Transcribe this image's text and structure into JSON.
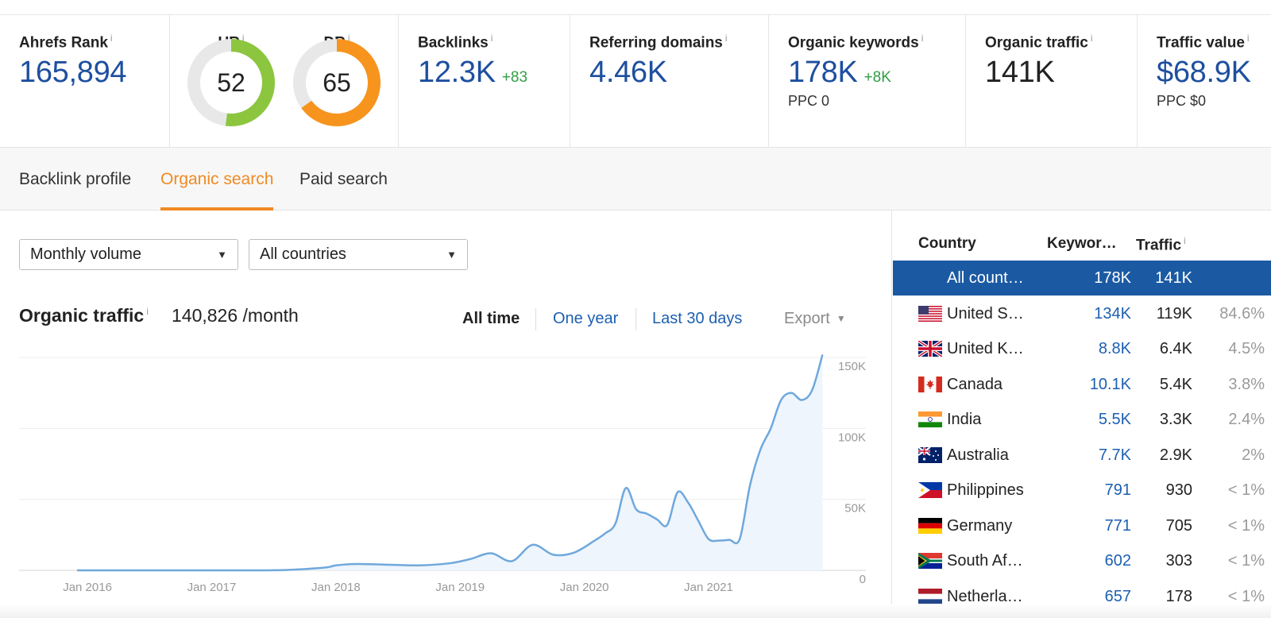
{
  "metrics": {
    "ahrefs_rank": {
      "label": "Ahrefs Rank",
      "value": "165,894"
    },
    "ur": {
      "label": "UR",
      "value": "52",
      "level": 52,
      "color": "#8cc63f"
    },
    "dr": {
      "label": "DR",
      "value": "65",
      "level": 65,
      "color": "#f7941d"
    },
    "backlinks": {
      "label": "Backlinks",
      "value": "12.3K",
      "delta": "+83"
    },
    "referring_domains": {
      "label": "Referring domains",
      "value": "4.46K"
    },
    "organic_keywords": {
      "label": "Organic keywords",
      "value": "178K",
      "delta": "+8K",
      "sub": "PPC 0"
    },
    "organic_traffic": {
      "label": "Organic traffic",
      "value": "141K"
    },
    "traffic_value": {
      "label": "Traffic value",
      "value": "$68.9K",
      "sub": "PPC $0"
    },
    "info_glyph": "i"
  },
  "tabs": [
    {
      "label": "Backlink profile",
      "active": false
    },
    {
      "label": "Organic search",
      "active": true
    },
    {
      "label": "Paid search",
      "active": false
    }
  ],
  "filters": {
    "volume": "Monthly volume",
    "countries": "All countries"
  },
  "traffic": {
    "title": "Organic traffic",
    "value": "140,826 /month",
    "ranges": {
      "all": "All time",
      "year": "One year",
      "days": "Last 30 days"
    },
    "export": "Export"
  },
  "chart_data": {
    "type": "area",
    "x_ticks": [
      "Jan 2016",
      "Jan 2017",
      "Jan 2018",
      "Jan 2019",
      "Jan 2020",
      "Jan 2021"
    ],
    "y_ticks": [
      "150K",
      "100K",
      "50K",
      "0"
    ],
    "ylim": [
      0,
      150000
    ],
    "grid": true,
    "color": "#6fa8dc",
    "fill": "#eef5fd",
    "series": [
      {
        "x": [
          "2015-12",
          "2016-06",
          "2017-01",
          "2017-06",
          "2017-09",
          "2017-12",
          "2018-01",
          "2018-03",
          "2018-06",
          "2018-09",
          "2018-12",
          "2019-02",
          "2019-04",
          "2019-06",
          "2019-08",
          "2019-10",
          "2019-12",
          "2020-02",
          "2020-03",
          "2020-04",
          "2020-05",
          "2020-06",
          "2020-07",
          "2020-08",
          "2020-09",
          "2020-10",
          "2020-11",
          "2020-12",
          "2021-01",
          "2021-02",
          "2021-03",
          "2021-04",
          "2021-05",
          "2021-06",
          "2021-07",
          "2021-08",
          "2021-09",
          "2021-10",
          "2021-11",
          "2021-12"
        ],
        "y": [
          0,
          0,
          0,
          0,
          500,
          2000,
          3500,
          4500,
          4000,
          3500,
          5000,
          8000,
          12000,
          6500,
          18000,
          11000,
          12500,
          21000,
          26000,
          33000,
          58000,
          43000,
          40000,
          36000,
          32000,
          55000,
          48000,
          35000,
          22000,
          21000,
          21500,
          22000,
          60000,
          85000,
          100000,
          120000,
          125000,
          120000,
          127000,
          152000
        ]
      }
    ]
  },
  "country_table": {
    "headers": {
      "country": "Country",
      "keywords": "Keywor…",
      "traffic": "Traffic"
    },
    "rows": [
      {
        "country": "All count…",
        "keywords": "178K",
        "traffic": "141K",
        "share": "",
        "flag": "",
        "selected": true
      },
      {
        "country": "United S…",
        "keywords": "134K",
        "traffic": "119K",
        "share": "84.6%",
        "flag": "us-flag-icon"
      },
      {
        "country": "United K…",
        "keywords": "8.8K",
        "traffic": "6.4K",
        "share": "4.5%",
        "flag": "uk-flag-icon"
      },
      {
        "country": "Canada",
        "keywords": "10.1K",
        "traffic": "5.4K",
        "share": "3.8%",
        "flag": "canada-flag-icon"
      },
      {
        "country": "India",
        "keywords": "5.5K",
        "traffic": "3.3K",
        "share": "2.4%",
        "flag": "india-flag-icon"
      },
      {
        "country": "Australia",
        "keywords": "7.7K",
        "traffic": "2.9K",
        "share": "2%",
        "flag": "australia-flag-icon"
      },
      {
        "country": "Philippines",
        "keywords": "791",
        "traffic": "930",
        "share": "< 1%",
        "flag": "philippines-flag-icon"
      },
      {
        "country": "Germany",
        "keywords": "771",
        "traffic": "705",
        "share": "< 1%",
        "flag": "germany-flag-icon"
      },
      {
        "country": "South Af…",
        "keywords": "602",
        "traffic": "303",
        "share": "< 1%",
        "flag": "south-africa-flag-icon"
      },
      {
        "country": "Netherla…",
        "keywords": "657",
        "traffic": "178",
        "share": "< 1%",
        "flag": "netherlands-flag-icon"
      }
    ]
  }
}
